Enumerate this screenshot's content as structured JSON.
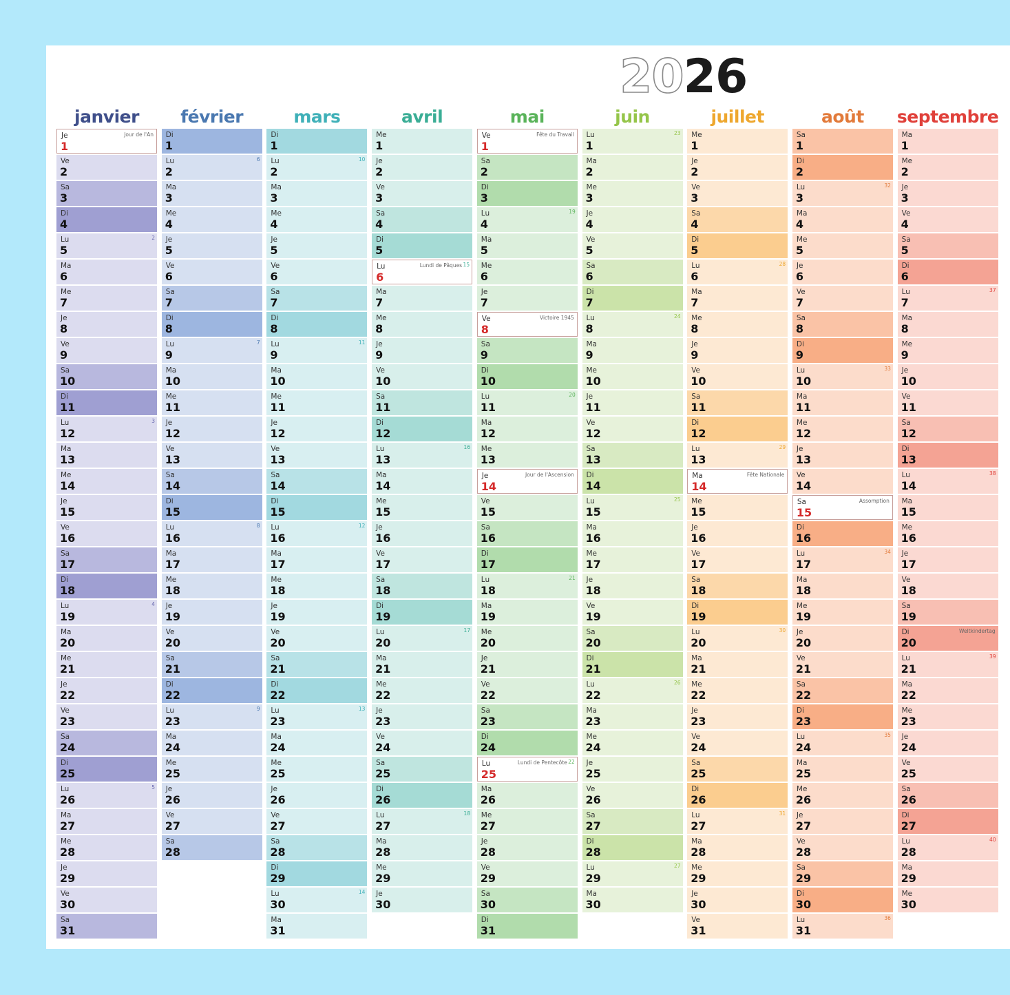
{
  "year": {
    "outline": "20",
    "solid": "26"
  },
  "months": [
    {
      "name": "janvier",
      "color": "#3f4f8a",
      "wk_color": "#6a6ab0",
      "c": [
        "#dcdcef",
        "#b8b8de",
        "#9f9fd2"
      ],
      "days": [
        "Je",
        "Ve",
        "Sa",
        "Di",
        "Lu",
        "Ma",
        "Me",
        "Je",
        "Ve",
        "Sa",
        "Di",
        "Lu",
        "Ma",
        "Me",
        "Je",
        "Ve",
        "Sa",
        "Di",
        "Lu",
        "Ma",
        "Me",
        "Je",
        "Ve",
        "Sa",
        "Di",
        "Lu",
        "Ma",
        "Me",
        "Je",
        "Ve",
        "Sa"
      ],
      "weeks": {
        "5": "2",
        "12": "3",
        "19": "4",
        "26": "5"
      },
      "notes": {
        "1": "Jour de l'An"
      },
      "holidays": [
        1
      ]
    },
    {
      "name": "février",
      "color": "#4a78b0",
      "wk_color": "#4a78b0",
      "c": [
        "#d6e0f1",
        "#b7c8e7",
        "#9db6e0"
      ],
      "days": [
        "Di",
        "Lu",
        "Ma",
        "Me",
        "Je",
        "Ve",
        "Sa",
        "Di",
        "Lu",
        "Ma",
        "Me",
        "Je",
        "Ve",
        "Sa",
        "Di",
        "Lu",
        "Ma",
        "Me",
        "Je",
        "Ve",
        "Sa",
        "Di",
        "Lu",
        "Ma",
        "Me",
        "Je",
        "Ve",
        "Sa"
      ],
      "weeks": {
        "2": "6",
        "9": "7",
        "16": "8",
        "23": "9"
      },
      "notes": {},
      "holidays": []
    },
    {
      "name": "mars",
      "color": "#3fb0b8",
      "wk_color": "#3fb0b8",
      "c": [
        "#d8eff1",
        "#b8e2e7",
        "#a2d9e0"
      ],
      "days": [
        "Di",
        "Lu",
        "Ma",
        "Me",
        "Je",
        "Ve",
        "Sa",
        "Di",
        "Lu",
        "Ma",
        "Me",
        "Je",
        "Ve",
        "Sa",
        "Di",
        "Lu",
        "Ma",
        "Me",
        "Je",
        "Ve",
        "Sa",
        "Di",
        "Lu",
        "Ma",
        "Me",
        "Je",
        "Ve",
        "Sa",
        "Di",
        "Lu",
        "Ma"
      ],
      "weeks": {
        "2": "10",
        "9": "11",
        "16": "12",
        "23": "13",
        "30": "14"
      },
      "notes": {},
      "holidays": []
    },
    {
      "name": "avril",
      "color": "#3aad95",
      "wk_color": "#3aad95",
      "c": [
        "#d8efeb",
        "#bfe5df",
        "#a5dbd5"
      ],
      "days": [
        "Me",
        "Je",
        "Ve",
        "Sa",
        "Di",
        "Lu",
        "Ma",
        "Me",
        "Je",
        "Ve",
        "Sa",
        "Di",
        "Lu",
        "Ma",
        "Me",
        "Je",
        "Ve",
        "Sa",
        "Di",
        "Lu",
        "Ma",
        "Me",
        "Je",
        "Ve",
        "Sa",
        "Di",
        "Lu",
        "Ma",
        "Me",
        "Je"
      ],
      "weeks": {
        "6": "15",
        "13": "16",
        "20": "17",
        "27": "18"
      },
      "notes": {
        "6": "Lundi de Pâques"
      },
      "holidays": [
        6
      ]
    },
    {
      "name": "mai",
      "color": "#5ab35a",
      "wk_color": "#5ab35a",
      "c": [
        "#dcefdc",
        "#c5e5c2",
        "#b1dcac"
      ],
      "days": [
        "Ve",
        "Sa",
        "Di",
        "Lu",
        "Ma",
        "Me",
        "Je",
        "Ve",
        "Sa",
        "Di",
        "Lu",
        "Ma",
        "Me",
        "Je",
        "Ve",
        "Sa",
        "Di",
        "Lu",
        "Ma",
        "Me",
        "Je",
        "Ve",
        "Sa",
        "Di",
        "Lu",
        "Ma",
        "Me",
        "Je",
        "Ve",
        "Sa",
        "Di"
      ],
      "weeks": {
        "4": "19",
        "11": "20",
        "18": "21",
        "25": "22"
      },
      "notes": {
        "1": "Fête du Travail",
        "8": "Victoire 1945",
        "14": "Jour de l'Ascension",
        "25": "Lundi de Pentecôte"
      },
      "holidays": [
        1,
        8,
        14,
        25
      ]
    },
    {
      "name": "juin",
      "color": "#95c54a",
      "wk_color": "#95c54a",
      "c": [
        "#e7f2da",
        "#d8eac2",
        "#cbe3a9"
      ],
      "days": [
        "Lu",
        "Ma",
        "Me",
        "Je",
        "Ve",
        "Sa",
        "Di",
        "Lu",
        "Ma",
        "Me",
        "Je",
        "Ve",
        "Sa",
        "Di",
        "Lu",
        "Ma",
        "Me",
        "Je",
        "Ve",
        "Sa",
        "Di",
        "Lu",
        "Ma",
        "Me",
        "Je",
        "Ve",
        "Sa",
        "Di",
        "Lu",
        "Ma"
      ],
      "weeks": {
        "1": "23",
        "8": "24",
        "15": "25",
        "22": "26",
        "29": "27"
      },
      "notes": {},
      "holidays": []
    },
    {
      "name": "juillet",
      "color": "#eea72e",
      "wk_color": "#eea72e",
      "c": [
        "#fde9d3",
        "#fcd8aa",
        "#fbcd8f"
      ],
      "days": [
        "Me",
        "Je",
        "Ve",
        "Sa",
        "Di",
        "Lu",
        "Ma",
        "Me",
        "Je",
        "Ve",
        "Sa",
        "Di",
        "Lu",
        "Ma",
        "Me",
        "Je",
        "Ve",
        "Sa",
        "Di",
        "Lu",
        "Ma",
        "Me",
        "Je",
        "Ve",
        "Sa",
        "Di",
        "Lu",
        "Ma",
        "Me",
        "Je",
        "Ve"
      ],
      "weeks": {
        "6": "28",
        "13": "29",
        "20": "30",
        "27": "31"
      },
      "notes": {
        "14": "Fête Nationale"
      },
      "holidays": [
        14
      ]
    },
    {
      "name": "août",
      "color": "#e27a3a",
      "wk_color": "#e27a3a",
      "c": [
        "#fcdccb",
        "#fac3a6",
        "#f8ae86"
      ],
      "days": [
        "Sa",
        "Di",
        "Lu",
        "Ma",
        "Me",
        "Je",
        "Ve",
        "Sa",
        "Di",
        "Lu",
        "Ma",
        "Me",
        "Je",
        "Ve",
        "Sa",
        "Di",
        "Lu",
        "Ma",
        "Me",
        "Je",
        "Ve",
        "Sa",
        "Di",
        "Lu",
        "Ma",
        "Me",
        "Je",
        "Ve",
        "Sa",
        "Di",
        "Lu"
      ],
      "weeks": {
        "3": "32",
        "10": "33",
        "17": "34",
        "24": "35",
        "31": "36"
      },
      "notes": {
        "15": "Assomption"
      },
      "holidays": [
        15
      ]
    },
    {
      "name": "septembre",
      "color": "#e0403a",
      "wk_color": "#e0403a",
      "c": [
        "#fbd9d2",
        "#f8bfb3",
        "#f4a394"
      ],
      "days": [
        "Ma",
        "Me",
        "Je",
        "Ve",
        "Sa",
        "Di",
        "Lu",
        "Ma",
        "Me",
        "Je",
        "Ve",
        "Sa",
        "Di",
        "Lu",
        "Ma",
        "Me",
        "Je",
        "Ve",
        "Sa",
        "Di",
        "Lu",
        "Ma",
        "Me",
        "Je",
        "Ve",
        "Sa",
        "Di",
        "Lu",
        "Ma",
        "Me"
      ],
      "weeks": {
        "7": "37",
        "14": "38",
        "21": "39",
        "28": "40"
      },
      "notes": {
        "20": "Weltkindertag"
      },
      "holidays": []
    }
  ]
}
